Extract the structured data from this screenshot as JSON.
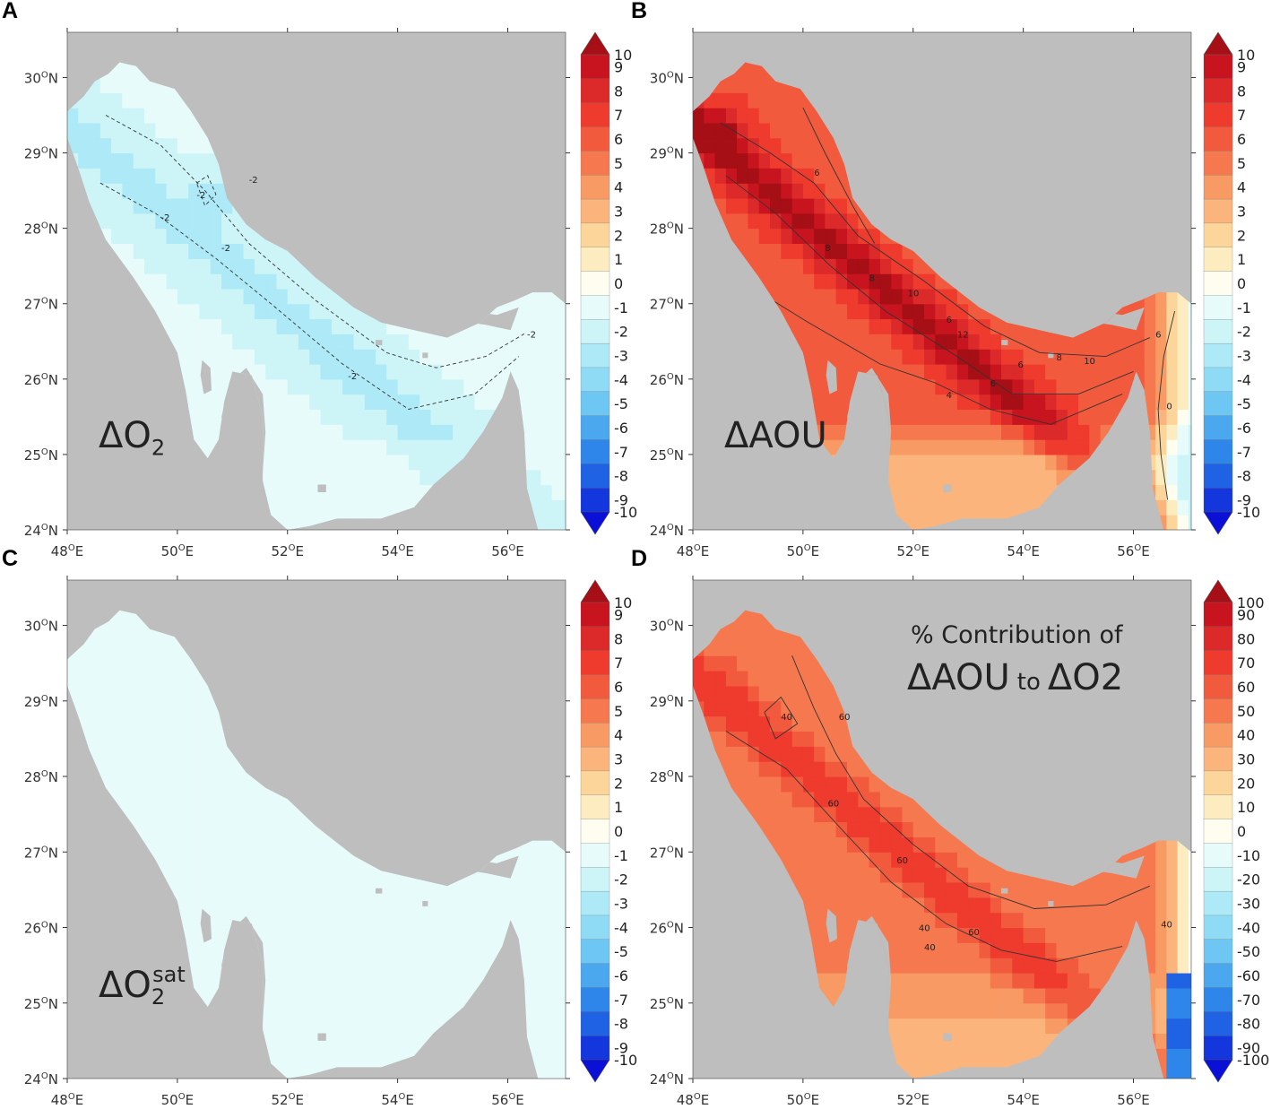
{
  "panels": [
    {
      "letter": "A",
      "label_main": "ΔO",
      "label_sub": "2",
      "label_sup": "",
      "field": "do2"
    },
    {
      "letter": "B",
      "label_main": "ΔAOU",
      "label_sub": "",
      "label_sup": "",
      "field": "daou"
    },
    {
      "letter": "C",
      "label_main": "ΔO",
      "label_sub": "2",
      "label_sup": "sat",
      "field": "dsat"
    },
    {
      "letter": "D",
      "label_main": "",
      "label_sub": "",
      "label_sup": "",
      "field": "pct",
      "title_line1": "% Contribution of",
      "title_line2_a": "ΔAOU",
      "title_line2_b": "to",
      "title_line2_c": "ΔO2"
    }
  ],
  "axes": {
    "lat_labels": [
      "24",
      "25",
      "26",
      "27",
      "28",
      "29",
      "30"
    ],
    "lat_suffix": "N",
    "lon_labels": [
      "48",
      "50",
      "52",
      "54",
      "56"
    ],
    "lon_suffix": "E",
    "degree_symbol": "O"
  },
  "colorbars": {
    "small": [
      "10",
      "9",
      "8",
      "7",
      "6",
      "5",
      "4",
      "3",
      "2",
      "1",
      "0",
      "-1",
      "-2",
      "-3",
      "-4",
      "-5",
      "-6",
      "-7",
      "-8",
      "-9",
      "-10"
    ],
    "large": [
      "100",
      "90",
      "80",
      "70",
      "60",
      "50",
      "40",
      "30",
      "20",
      "10",
      "0",
      "-10",
      "-20",
      "-30",
      "-40",
      "-50",
      "-60",
      "-70",
      "-80",
      "-90",
      "-100"
    ],
    "colors": [
      "#a50f15",
      "#c8141e",
      "#dc2a2a",
      "#ee3b2e",
      "#f25a3e",
      "#f6784f",
      "#f89a63",
      "#fbb47c",
      "#fcd59b",
      "#fdecc0",
      "#fffdf0",
      "#e8fbfb",
      "#cdf5f8",
      "#ade9f6",
      "#8fdbf5",
      "#6ec6f3",
      "#4ba8ef",
      "#2f86ea",
      "#1f62e3",
      "#1436dd",
      "#0a10d6"
    ],
    "land": "#bebebe"
  },
  "contour_labels": {
    "do2": [
      "-2",
      "-2",
      "-2",
      "-2",
      "-2",
      "-2"
    ],
    "daou": [
      "6",
      "8",
      "10",
      "6",
      "8",
      "12",
      "6",
      "6",
      "8",
      "10",
      "4",
      "6",
      "0"
    ],
    "pct": [
      "60",
      "40",
      "60",
      "60",
      "40",
      "60",
      "40",
      "40"
    ]
  }
}
